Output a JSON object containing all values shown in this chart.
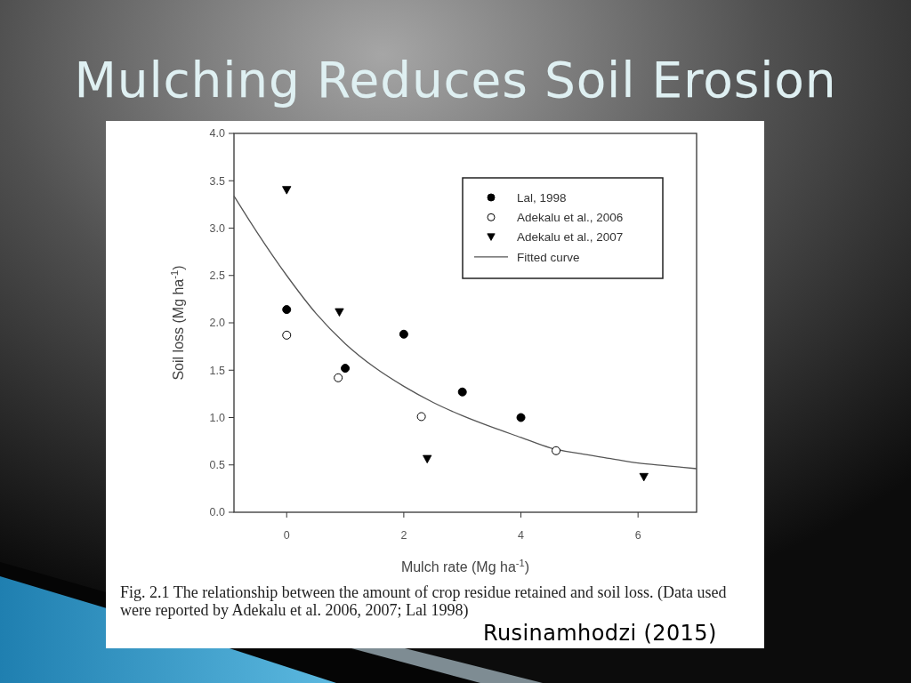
{
  "chart_data": {
    "type": "scatter",
    "title": "Mulching Reduces Soil Erosion",
    "xlabel": "Mulch rate (Mg ha$^{-1}$)",
    "ylabel": "Soil loss (Mg ha$^{-1}$)",
    "annotations": [
      "Fig. 2.1  The relationship between the amount of crop residue retained and soil loss. (Data used were reported by Adekalu et al. 2006, 2007; Lal 1998)",
      "Rusinamhodzi (2015)"
    ],
    "xlim": [
      -0.9,
      7
    ],
    "xticks": [
      0,
      2,
      4,
      6
    ],
    "ylim": [
      0,
      4
    ],
    "yticks": [
      {
        "value": 0,
        "label": "0.0"
      },
      {
        "value": 0.5,
        "label": "0.5"
      },
      {
        "value": 1,
        "label": "1.0"
      },
      {
        "value": 1.5,
        "label": "1.5"
      },
      {
        "value": 2,
        "label": "2.0"
      },
      {
        "value": 2.5,
        "label": "2.5"
      },
      {
        "value": 3,
        "label": "3.0"
      },
      {
        "value": 3.5,
        "label": "3.5"
      },
      {
        "value": 4,
        "label": "4.0"
      }
    ],
    "legend": "top right",
    "series": [
      {
        "name": "Lal, 1998",
        "marker": "circle",
        "color": "#000000",
        "x": [
          0,
          1,
          2,
          3,
          4
        ],
        "values": [
          2.14,
          1.52,
          1.88,
          1.27,
          1.0
        ]
      },
      {
        "name": "Adekalu et al., 2006",
        "marker": "circle",
        "color": "#ffffff",
        "x": [
          0,
          0.88,
          2.3,
          4.6
        ],
        "values": [
          1.87,
          1.42,
          1.01,
          0.65
        ]
      },
      {
        "name": "Adekalu et al., 2007",
        "marker": "triangle",
        "color": "#000000",
        "x": [
          0,
          0.9,
          2.4,
          6.1
        ],
        "values": [
          3.4,
          2.11,
          0.56,
          0.37
        ]
      },
      {
        "name": "Fitted curve",
        "type": "line",
        "marker": "none",
        "color": "#555555",
        "x": [
          -0.9,
          -0.5,
          0,
          0.5,
          1,
          1.5,
          2,
          2.5,
          3,
          3.5,
          4,
          4.5,
          5,
          5.5,
          6,
          6.5,
          7
        ],
        "values": [
          3.34,
          2.95,
          2.5,
          2.1,
          1.78,
          1.53,
          1.33,
          1.16,
          1.02,
          0.9,
          0.79,
          0.68,
          0.62,
          0.57,
          0.52,
          0.49,
          0.46
        ]
      }
    ]
  }
}
